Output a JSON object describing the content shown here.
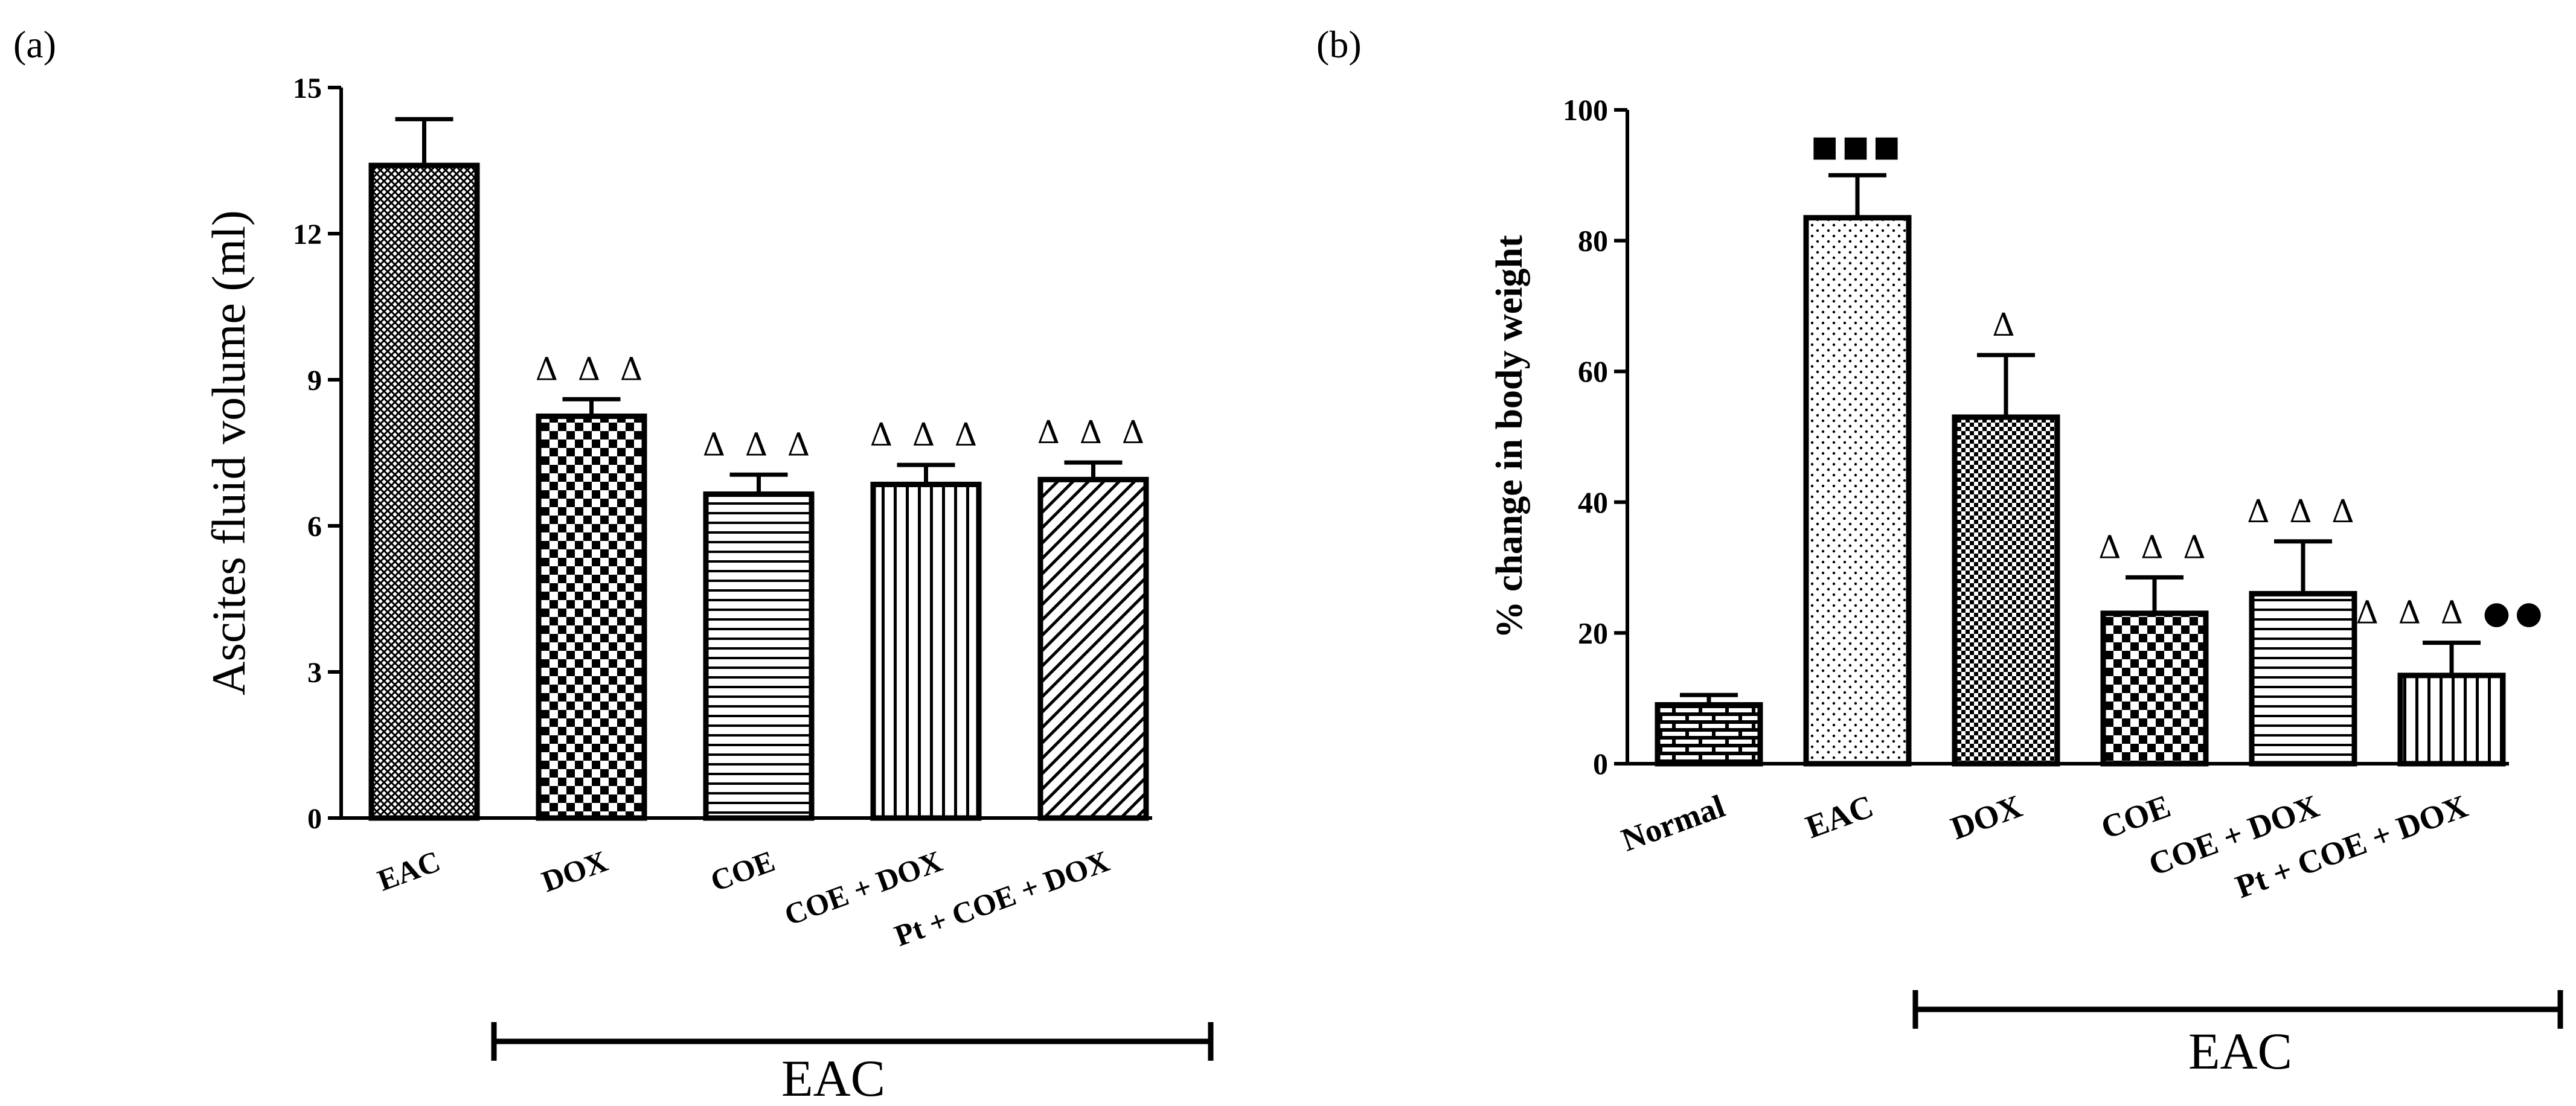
{
  "figure_labels": {
    "a": "(a)",
    "b": "(b)"
  },
  "chart_data": [
    {
      "id": "a",
      "type": "bar",
      "title": "",
      "xlabel": "",
      "ylabel": "Ascites fluid volume (ml)",
      "ylim": [
        0,
        15
      ],
      "yticks": [
        0,
        3,
        6,
        9,
        12,
        15
      ],
      "categories": [
        "EAC",
        "DOX",
        "COE",
        "COE + DOX",
        "Pt + COE + DOX"
      ],
      "values": [
        13.4,
        8.25,
        6.65,
        6.85,
        6.95
      ],
      "errors": [
        0.95,
        0.35,
        0.4,
        0.4,
        0.35
      ],
      "patterns": [
        "crosshatch",
        "checker",
        "hlines",
        "vlines",
        "diagonal"
      ],
      "annotations": [
        "",
        "Δ Δ Δ",
        "Δ Δ Δ",
        "Δ Δ Δ",
        "Δ Δ Δ"
      ],
      "group_bracket": {
        "label": "EAC",
        "from": "DOX-left",
        "to": "end"
      }
    },
    {
      "id": "b",
      "type": "bar",
      "title": "",
      "xlabel": "",
      "ylabel": "% change in body weight",
      "ylim": [
        0,
        100
      ],
      "yticks": [
        0,
        20,
        40,
        60,
        80,
        100
      ],
      "categories": [
        "Normal",
        "EAC",
        "DOX",
        "COE",
        "COE + DOX",
        "Pt + COE + DOX"
      ],
      "values": [
        9,
        83.5,
        53,
        23,
        26,
        13.5
      ],
      "errors": [
        1.5,
        6.5,
        9.5,
        5.5,
        8,
        5
      ],
      "patterns": [
        "bricks",
        "dots",
        "fine-check",
        "checker",
        "hlines",
        "vlines"
      ],
      "annotations": [
        "",
        "■■■",
        "Δ",
        "Δ Δ Δ",
        "Δ Δ Δ",
        "Δ Δ Δ ●●"
      ],
      "group_bracket": {
        "label": "EAC",
        "from": "DOX",
        "to": "end"
      }
    }
  ]
}
